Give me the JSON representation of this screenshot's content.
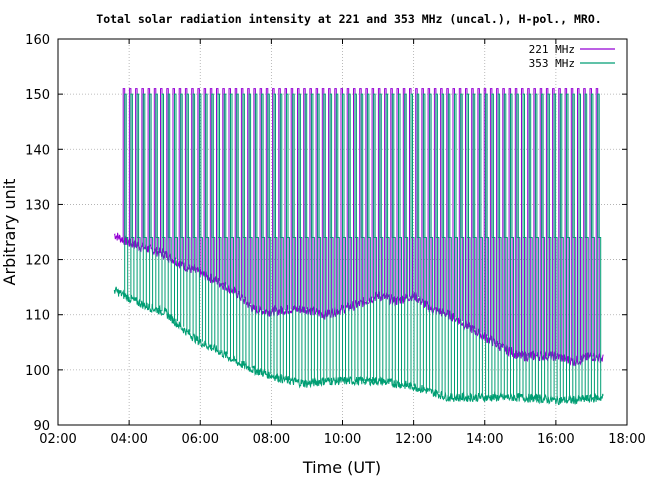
{
  "chart_data": {
    "type": "line",
    "title": "Total solar radiation intensity at 221 and 353 MHz (uncal.), H-pol., MRO.",
    "xlabel": "Time (UT)",
    "ylabel": "Arbitrary unit",
    "xlim": [
      "02:00",
      "18:00"
    ],
    "ylim": [
      90,
      160
    ],
    "x_ticks": [
      "02:00",
      "04:00",
      "06:00",
      "08:00",
      "10:00",
      "12:00",
      "14:00",
      "16:00",
      "18:00"
    ],
    "y_ticks": [
      90,
      100,
      110,
      120,
      130,
      140,
      150,
      160
    ],
    "grid": true,
    "legend_position": "top-right",
    "series": [
      {
        "name": "221 MHz",
        "color": "#9400d3",
        "x": [
          "03:35",
          "04:00",
          "04:30",
          "05:00",
          "05:30",
          "06:00",
          "06:30",
          "07:00",
          "07:30",
          "08:00",
          "08:30",
          "09:00",
          "09:30",
          "10:00",
          "10:30",
          "11:00",
          "11:30",
          "12:00",
          "12:30",
          "13:00",
          "13:30",
          "14:00",
          "14:30",
          "15:00",
          "15:30",
          "16:00",
          "16:30",
          "17:00",
          "17:20"
        ],
        "values": [
          124.5,
          123,
          122,
          121,
          119,
          117.5,
          116,
          114,
          111,
          110.5,
          111,
          111,
          110,
          111,
          112,
          113.5,
          112.5,
          113.5,
          111,
          110,
          108,
          106,
          104,
          102.5,
          102.5,
          102.5,
          101.5,
          102.5,
          102
        ],
        "baseline": 124,
        "spike_peak": 151
      },
      {
        "name": "353 MHz",
        "color": "#009e73",
        "x": [
          "03:35",
          "04:00",
          "04:30",
          "05:00",
          "05:30",
          "06:00",
          "06:30",
          "07:00",
          "07:30",
          "08:00",
          "08:30",
          "09:00",
          "09:30",
          "10:00",
          "10:30",
          "11:00",
          "11:30",
          "12:00",
          "12:30",
          "13:00",
          "13:30",
          "14:00",
          "14:30",
          "15:00",
          "15:30",
          "16:00",
          "16:30",
          "17:00",
          "17:20"
        ],
        "values": [
          114.5,
          113,
          111.5,
          110.5,
          107.5,
          105,
          103.5,
          101.5,
          100,
          99,
          98,
          97.5,
          98,
          98,
          98,
          98,
          97.5,
          97,
          96,
          95,
          95,
          95,
          95,
          95,
          94.8,
          94.5,
          94.5,
          94.8,
          95
        ],
        "baseline": 124,
        "spike_peak": 150
      }
    ]
  }
}
